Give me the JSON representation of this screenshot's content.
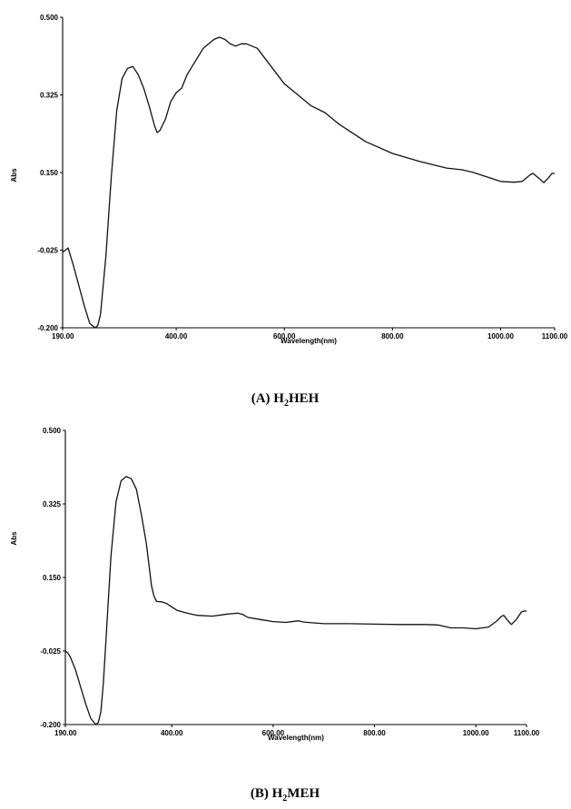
{
  "chart_data": [
    {
      "type": "line",
      "caption": "(A) H2HEH",
      "xlabel": "Wavelength(nm)",
      "ylabel": "Abs",
      "xlim": [
        190,
        1100
      ],
      "ylim": [
        -0.2,
        0.5
      ],
      "x_ticks": [
        "190.00",
        "400.00",
        "600.00",
        "800.00",
        "1000.00",
        "1100.00"
      ],
      "y_ticks": [
        "-0.200",
        "-0.025",
        "0.150",
        "0.325",
        "0.500"
      ],
      "grid": false,
      "series": [
        {
          "x": [
            190,
            200,
            210,
            230,
            240,
            250,
            255,
            260,
            270,
            280,
            290,
            300,
            310,
            320,
            330,
            340,
            350,
            360,
            365,
            370,
            380,
            390,
            400,
            410,
            420,
            430,
            440,
            450,
            460,
            470,
            480,
            490,
            500,
            510,
            520,
            530,
            550,
            575,
            600,
            625,
            650,
            675,
            700,
            750,
            800,
            850,
            900,
            930,
            950,
            975,
            1000,
            1025,
            1040,
            1055,
            1060,
            1070,
            1080,
            1090,
            1095,
            1100
          ],
          "y": [
            -0.03,
            -0.02,
            -0.06,
            -0.15,
            -0.19,
            -0.2,
            -0.195,
            -0.17,
            -0.04,
            0.14,
            0.29,
            0.362,
            0.385,
            0.389,
            0.37,
            0.34,
            0.3,
            0.255,
            0.24,
            0.245,
            0.27,
            0.31,
            0.33,
            0.34,
            0.37,
            0.39,
            0.41,
            0.43,
            0.44,
            0.45,
            0.455,
            0.45,
            0.44,
            0.435,
            0.44,
            0.44,
            0.43,
            0.39,
            0.35,
            0.325,
            0.3,
            0.285,
            0.26,
            0.22,
            0.193,
            0.175,
            0.16,
            0.156,
            0.15,
            0.14,
            0.13,
            0.128,
            0.13,
            0.145,
            0.148,
            0.138,
            0.127,
            0.14,
            0.148,
            0.148
          ]
        }
      ]
    },
    {
      "type": "line",
      "caption": "(B) H2MEH",
      "xlabel": "Wavelength(nm)",
      "ylabel": "Abs",
      "xlim": [
        190,
        1100
      ],
      "ylim": [
        -0.2,
        0.5
      ],
      "x_ticks": [
        "190.00",
        "400.00",
        "600.00",
        "800.00",
        "1000.00",
        "1100.00"
      ],
      "y_ticks": [
        "-0.200",
        "-0.025",
        "0.150",
        "0.325",
        "0.500"
      ],
      "grid": false,
      "series": [
        {
          "x": [
            190,
            195,
            200,
            210,
            220,
            230,
            240,
            250,
            255,
            260,
            265,
            270,
            280,
            290,
            300,
            310,
            320,
            330,
            340,
            350,
            360,
            365,
            370,
            380,
            390,
            400,
            410,
            430,
            450,
            480,
            510,
            530,
            540,
            550,
            575,
            600,
            625,
            650,
            660,
            700,
            750,
            800,
            850,
            900,
            925,
            950,
            975,
            1000,
            1025,
            1040,
            1050,
            1055,
            1060,
            1070,
            1080,
            1090,
            1095,
            1100
          ],
          "y": [
            -0.025,
            -0.03,
            -0.04,
            -0.07,
            -0.11,
            -0.15,
            -0.185,
            -0.2,
            -0.195,
            -0.17,
            -0.1,
            0.0,
            0.2,
            0.33,
            0.38,
            0.39,
            0.385,
            0.36,
            0.3,
            0.23,
            0.13,
            0.105,
            0.093,
            0.092,
            0.088,
            0.08,
            0.072,
            0.065,
            0.06,
            0.058,
            0.063,
            0.065,
            0.062,
            0.055,
            0.05,
            0.045,
            0.043,
            0.047,
            0.044,
            0.04,
            0.04,
            0.039,
            0.038,
            0.038,
            0.037,
            0.03,
            0.03,
            0.028,
            0.032,
            0.045,
            0.057,
            0.06,
            0.052,
            0.038,
            0.05,
            0.068,
            0.07,
            0.07
          ]
        }
      ]
    }
  ]
}
